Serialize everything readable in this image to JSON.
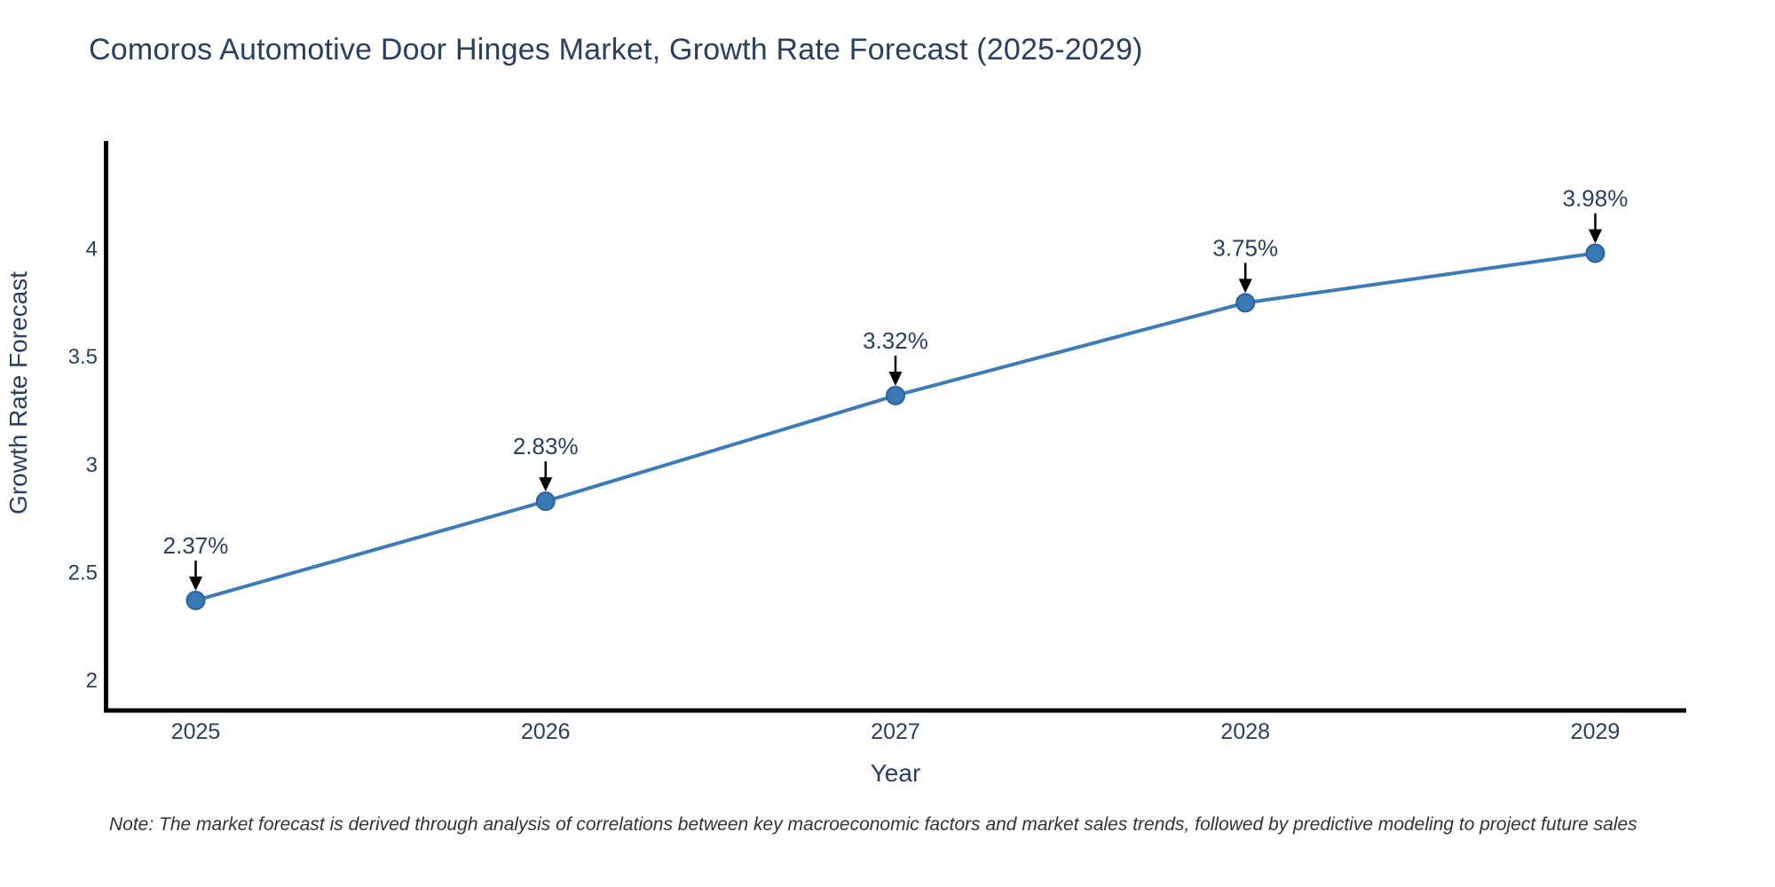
{
  "chart_data": {
    "type": "line",
    "title": "Comoros Automotive Door Hinges Market, Growth Rate Forecast (2025-2029)",
    "xlabel": "Year",
    "ylabel": "Growth Rate Forecast",
    "x": [
      2025,
      2026,
      2027,
      2028,
      2029
    ],
    "xtick_labels": [
      "2025",
      "2026",
      "2027",
      "2028",
      "2029"
    ],
    "series": [
      {
        "name": "Growth Rate Forecast",
        "values": [
          2.37,
          2.83,
          3.32,
          3.75,
          3.98
        ],
        "point_labels": [
          "2.37%",
          "2.83%",
          "3.32%",
          "3.75%",
          "3.98%"
        ]
      }
    ],
    "yticks": [
      2,
      2.5,
      3,
      3.5,
      4
    ],
    "ytick_labels": [
      "2",
      "2.5",
      "3",
      "3.5",
      "4"
    ],
    "ylim": [
      1.86,
      4.5
    ],
    "xlim": [
      2024.74,
      2029.26
    ],
    "grid": false,
    "legend": false,
    "line_shape": "linear",
    "annotation_style": "value-label-with-down-arrow-to-point"
  },
  "note": "Note: The market forecast is derived through analysis of correlations between key macroeconomic factors and market sales trends, followed by predictive modeling to project future sales",
  "colors": {
    "line": "#3d7ab8",
    "marker_fill": "#3878b4",
    "marker_edge": "#2b6399",
    "axis": "#000000",
    "text": "#2a3f5f",
    "annotation_text": "#2a3f5f",
    "annotation_arrow": "#000000",
    "note_text": "#333333",
    "background": "#ffffff"
  }
}
